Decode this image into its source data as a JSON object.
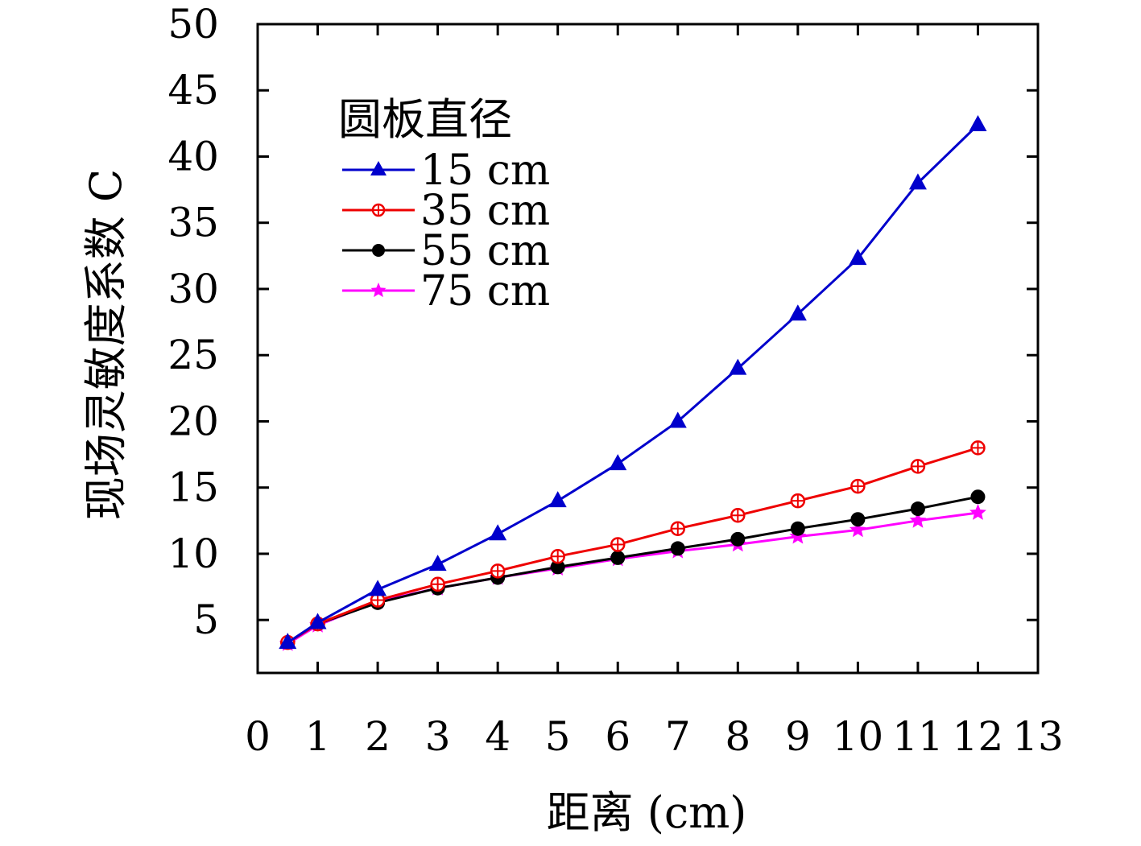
{
  "chart_data": {
    "type": "line",
    "xlabel": "距离 (cm)",
    "ylabel": "现场灵敏度系数 C",
    "xlim": [
      0,
      13
    ],
    "ylim": [
      1,
      50
    ],
    "x_ticks": [
      0,
      1,
      2,
      3,
      4,
      5,
      6,
      7,
      8,
      9,
      10,
      11,
      12,
      13
    ],
    "x_tick_labels": [
      "0",
      "1",
      "2",
      "3",
      "4",
      "5",
      "6",
      "7",
      "8",
      "9",
      "10",
      "11",
      "12",
      "13"
    ],
    "y_ticks": [
      5,
      10,
      15,
      20,
      25,
      30,
      35,
      40,
      45,
      50
    ],
    "y_tick_labels": [
      "5",
      "10",
      "15",
      "20",
      "25",
      "30",
      "35",
      "40",
      "45",
      "50"
    ],
    "grid": false,
    "legend": {
      "title": "圆板直径",
      "position": "top-left"
    },
    "x": [
      0.5,
      1,
      2,
      3,
      4,
      5,
      6,
      7,
      8,
      9,
      10,
      11,
      12
    ],
    "series": [
      {
        "name": "15 cm",
        "color": "#0000cc",
        "marker": "triangle",
        "values": [
          3.3,
          4.8,
          7.3,
          9.2,
          11.5,
          14.0,
          16.8,
          20.0,
          24.0,
          28.1,
          32.3,
          38.0,
          42.4
        ]
      },
      {
        "name": "35 cm",
        "color": "#ee0000",
        "marker": "circle-cross",
        "values": [
          3.3,
          4.7,
          6.5,
          7.7,
          8.7,
          9.8,
          10.7,
          11.9,
          12.9,
          14.0,
          15.1,
          16.6,
          18.0
        ]
      },
      {
        "name": "55 cm",
        "color": "#000000",
        "marker": "filled-circle",
        "values": [
          3.3,
          4.7,
          6.3,
          7.4,
          8.2,
          9.0,
          9.7,
          10.4,
          11.1,
          11.9,
          12.6,
          13.4,
          14.3
        ]
      },
      {
        "name": "75 cm",
        "color": "#ff00ff",
        "marker": "star",
        "values": [
          3.2,
          4.6,
          6.4,
          7.4,
          8.2,
          8.9,
          9.6,
          10.2,
          10.7,
          11.3,
          11.8,
          12.5,
          13.1
        ]
      }
    ]
  }
}
